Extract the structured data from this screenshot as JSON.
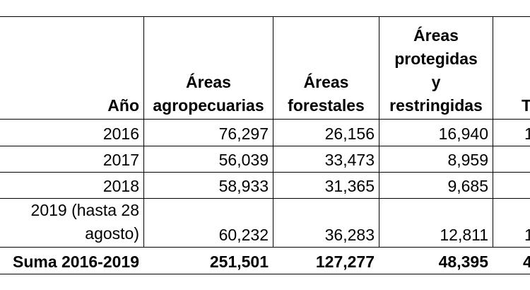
{
  "table": {
    "headers": {
      "year": "Año",
      "agro": [
        "Áreas",
        "agropecuarias"
      ],
      "forest": [
        "Áreas",
        "forestales"
      ],
      "protected": [
        "Áreas",
        "protegidas",
        "y",
        "restringidas"
      ],
      "total_partial": "T"
    },
    "rows": [
      {
        "year": "2016",
        "agro": "76,297",
        "forest": "26,156",
        "protected": "16,940",
        "partial": "1"
      },
      {
        "year": "2017",
        "agro": "56,039",
        "forest": "33,473",
        "protected": "8,959",
        "partial": ""
      },
      {
        "year": "2018",
        "agro": "58,933",
        "forest": "31,365",
        "protected": "9,685",
        "partial": ""
      },
      {
        "year_lines": [
          "2019 (hasta 28",
          "agosto)"
        ],
        "agro": "60,232",
        "forest": "36,283",
        "protected": "12,811",
        "partial": "1"
      }
    ],
    "sum": {
      "label": "Suma 2016-2019",
      "agro": "251,501",
      "forest": "127,277",
      "protected": "48,395",
      "partial": "4"
    }
  }
}
